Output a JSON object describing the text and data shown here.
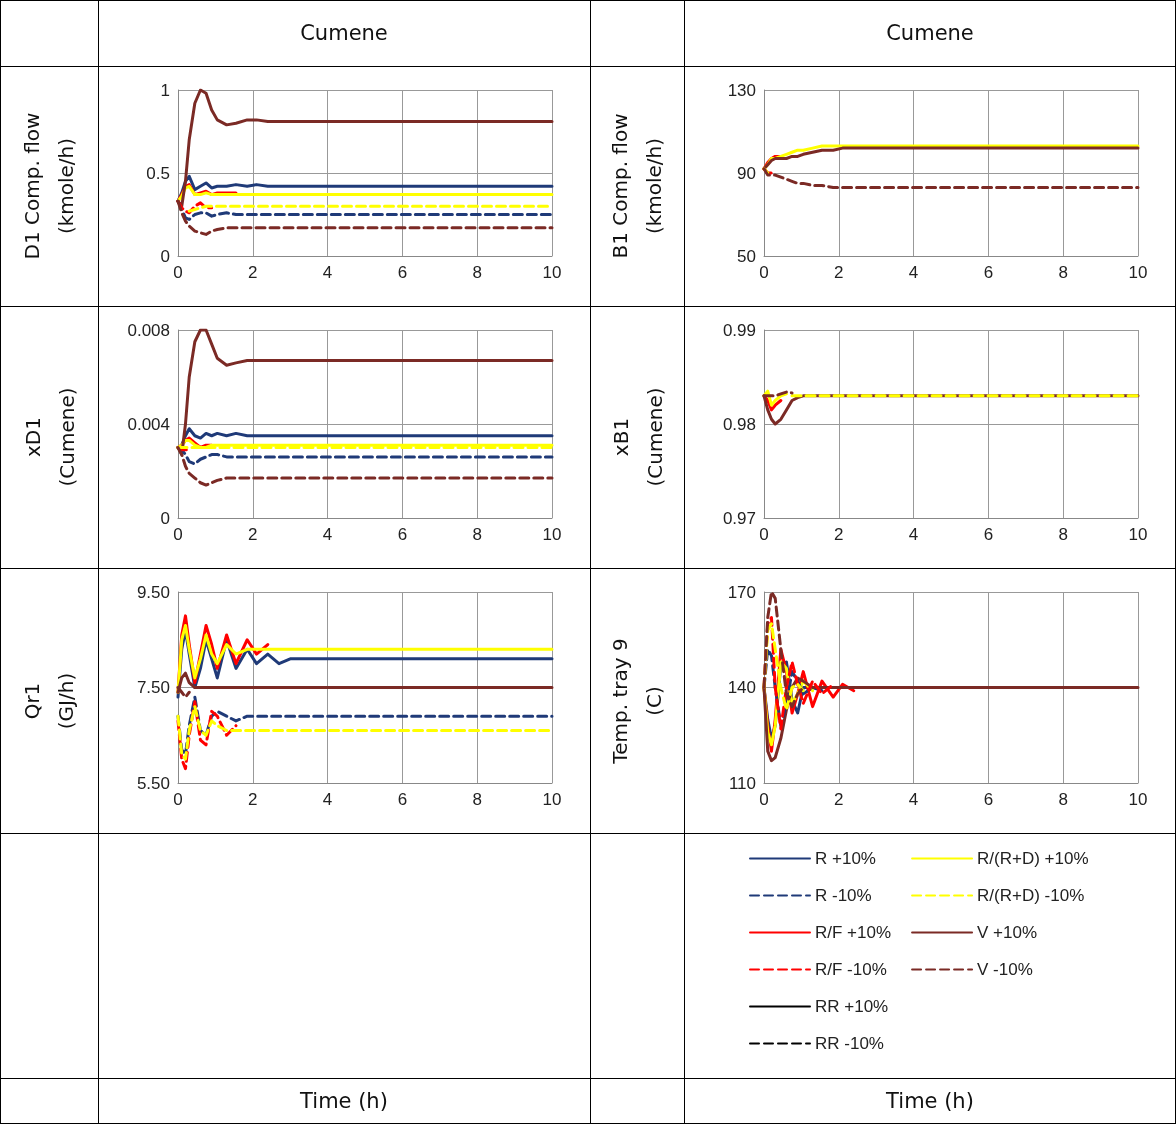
{
  "chart_data": [
    {
      "type": "line",
      "title": "Cumene",
      "ylabel": "D1 Comp. flow (kmole/h)",
      "x": [
        0,
        0.1,
        0.2,
        0.3,
        0.45,
        0.6,
        0.75,
        0.9,
        1.05,
        1.3,
        1.55,
        1.85,
        2.1,
        2.4,
        2.7,
        3,
        4,
        6,
        10
      ],
      "xlim": [
        0,
        10
      ],
      "xticks": [
        0,
        2,
        4,
        6,
        8,
        10
      ],
      "ylim": [
        0,
        1
      ],
      "yticks": [
        0,
        0.5,
        1
      ],
      "grid": true,
      "marker": "none",
      "series": [
        {
          "color": "#1f3a78",
          "line_style": "solid",
          "values": [
            0.33,
            0.38,
            0.45,
            0.48,
            0.4,
            0.42,
            0.44,
            0.41,
            0.42,
            0.42,
            0.43,
            0.42,
            0.43,
            0.42,
            0.42,
            0.42,
            0.42,
            0.42,
            0.42
          ]
        },
        {
          "color": "#1f3a78",
          "line_style": "dashed",
          "values": [
            0.33,
            0.28,
            0.23,
            0.22,
            0.25,
            0.26,
            0.26,
            0.24,
            0.25,
            0.26,
            0.25,
            0.25,
            0.25,
            0.25,
            0.25,
            0.25,
            0.25,
            0.25,
            0.25
          ]
        },
        {
          "color": "#ff0000",
          "line_style": "solid",
          "values": [
            0.33,
            0.37,
            0.42,
            0.43,
            0.37,
            0.38,
            0.39,
            0.37,
            0.38,
            0.38,
            0.38,
            null,
            null,
            null,
            null,
            null,
            null,
            null,
            null
          ]
        },
        {
          "color": "#ff0000",
          "line_style": "dashed",
          "values": [
            0.33,
            0.29,
            0.27,
            0.26,
            0.3,
            0.32,
            0.29,
            0.29,
            null,
            null,
            null,
            null,
            null,
            null,
            null,
            null,
            null,
            null,
            null
          ]
        },
        {
          "color": "#000000",
          "line_style": "solid",
          "values": [
            null,
            null,
            null,
            null,
            null,
            null,
            null,
            null,
            null,
            null,
            null,
            null,
            null,
            null,
            null,
            null,
            null,
            null,
            null
          ]
        },
        {
          "color": "#000000",
          "line_style": "dashed",
          "values": [
            null,
            null,
            null,
            null,
            null,
            null,
            null,
            null,
            null,
            null,
            null,
            null,
            null,
            null,
            null,
            null,
            null,
            null,
            null
          ]
        },
        {
          "color": "#ffff00",
          "line_style": "solid",
          "values": [
            0.33,
            0.36,
            0.41,
            0.42,
            0.37,
            0.37,
            0.38,
            0.37,
            0.37,
            0.37,
            0.37,
            0.37,
            0.37,
            0.37,
            0.37,
            0.37,
            0.37,
            0.37,
            0.37
          ]
        },
        {
          "color": "#ffff00",
          "line_style": "dashed",
          "values": [
            null,
            null,
            null,
            0.27,
            0.28,
            0.29,
            0.3,
            0.3,
            0.3,
            0.3,
            0.3,
            0.3,
            0.3,
            0.3,
            0.3,
            0.3,
            0.3,
            0.3,
            0.3
          ]
        },
        {
          "color": "#7b2a25",
          "line_style": "solid",
          "values": [
            0.33,
            0.3,
            0.45,
            0.7,
            0.92,
            1.0,
            0.98,
            0.88,
            0.82,
            0.79,
            0.8,
            0.82,
            0.82,
            0.81,
            0.81,
            0.81,
            0.81,
            0.81,
            0.81
          ]
        },
        {
          "color": "#7b2a25",
          "line_style": "dashed",
          "values": [
            0.33,
            0.26,
            0.21,
            0.18,
            0.15,
            0.14,
            0.13,
            0.15,
            0.16,
            0.17,
            0.17,
            0.17,
            0.17,
            0.17,
            0.17,
            0.17,
            0.17,
            0.17,
            0.17
          ]
        }
      ]
    },
    {
      "type": "line",
      "title": "Cumene",
      "ylabel": "B1 Comp. flow (kmole/h)",
      "x": [
        0,
        0.1,
        0.2,
        0.3,
        0.45,
        0.6,
        0.75,
        0.9,
        1.05,
        1.3,
        1.55,
        1.85,
        2.1,
        2.4,
        2.7,
        3,
        4,
        6,
        10
      ],
      "xlim": [
        0,
        10
      ],
      "xticks": [
        0,
        2,
        4,
        6,
        8,
        10
      ],
      "ylim": [
        50,
        130
      ],
      "yticks": [
        50,
        90,
        130
      ],
      "grid": true,
      "marker": "none",
      "series": [
        {
          "color": "#1f3a78",
          "line_style": "solid",
          "values": [
            null,
            null,
            null,
            null,
            null,
            null,
            null,
            null,
            null,
            null,
            null,
            null,
            null,
            null,
            null,
            null,
            null,
            null,
            null
          ]
        },
        {
          "color": "#1f3a78",
          "line_style": "dashed",
          "values": [
            null,
            null,
            null,
            null,
            null,
            null,
            null,
            null,
            null,
            null,
            null,
            null,
            null,
            null,
            null,
            null,
            null,
            null,
            null
          ]
        },
        {
          "color": "#ff0000",
          "line_style": "solid",
          "values": [
            92,
            95,
            97,
            98,
            98,
            null,
            null,
            null,
            null,
            null,
            null,
            null,
            null,
            null,
            null,
            null,
            null,
            null,
            null
          ]
        },
        {
          "color": "#ff0000",
          "line_style": "dashed",
          "values": [
            92,
            90,
            90,
            null,
            null,
            null,
            null,
            null,
            null,
            null,
            null,
            null,
            null,
            null,
            null,
            null,
            null,
            null,
            null
          ]
        },
        {
          "color": "#000000",
          "line_style": "solid",
          "values": [
            null,
            null,
            null,
            null,
            null,
            null,
            null,
            null,
            null,
            null,
            null,
            null,
            null,
            null,
            null,
            null,
            null,
            null,
            null
          ]
        },
        {
          "color": "#000000",
          "line_style": "dashed",
          "values": [
            null,
            null,
            null,
            null,
            null,
            null,
            null,
            null,
            null,
            null,
            null,
            null,
            null,
            null,
            null,
            null,
            null,
            null,
            null
          ]
        },
        {
          "color": "#ffff00",
          "line_style": "solid",
          "values": [
            92,
            94,
            97,
            97,
            98,
            99,
            100,
            101,
            101,
            102,
            103,
            103,
            103,
            103,
            103,
            103,
            103,
            103,
            103
          ]
        },
        {
          "color": "#ffff00",
          "line_style": "dashed",
          "values": [
            92,
            90,
            null,
            null,
            null,
            null,
            null,
            null,
            null,
            null,
            null,
            null,
            null,
            null,
            null,
            null,
            null,
            null,
            null
          ]
        },
        {
          "color": "#7b2a25",
          "line_style": "solid",
          "values": [
            92,
            94,
            96,
            97,
            97,
            97,
            98,
            98,
            99,
            100,
            101,
            101,
            102,
            102,
            102,
            102,
            102,
            102,
            102
          ]
        },
        {
          "color": "#7b2a25",
          "line_style": "dashed",
          "values": [
            92,
            89,
            89,
            89,
            88,
            87,
            86,
            85,
            85,
            84,
            84,
            83,
            83,
            83,
            83,
            83,
            83,
            83,
            83
          ]
        }
      ]
    },
    {
      "type": "line",
      "ylabel": "xD1 (Cumene)",
      "x": [
        0,
        0.1,
        0.2,
        0.3,
        0.45,
        0.6,
        0.75,
        0.9,
        1.05,
        1.3,
        1.55,
        1.85,
        2.1,
        2.4,
        2.7,
        3,
        4,
        6,
        10
      ],
      "xlim": [
        0,
        10
      ],
      "xticks": [
        0,
        2,
        4,
        6,
        8,
        10
      ],
      "ylim": [
        0,
        0.008
      ],
      "yticks": [
        0,
        0.004,
        0.008
      ],
      "grid": true,
      "marker": "none",
      "series": [
        {
          "color": "#1f3a78",
          "line_style": "solid",
          "values": [
            0.003,
            0.0031,
            0.0035,
            0.0038,
            0.0035,
            0.0034,
            0.0036,
            0.0035,
            0.0036,
            0.0035,
            0.0036,
            0.0035,
            0.0035,
            0.0035,
            0.0035,
            0.0035,
            0.0035,
            0.0035,
            0.0035
          ]
        },
        {
          "color": "#1f3a78",
          "line_style": "dashed",
          "values": [
            0.003,
            0.0029,
            0.0027,
            0.0024,
            0.0023,
            0.0025,
            0.0026,
            0.0027,
            0.0027,
            0.0026,
            0.0026,
            0.0026,
            0.0026,
            0.0026,
            0.0026,
            0.0026,
            0.0026,
            0.0026,
            0.0026
          ]
        },
        {
          "color": "#ff0000",
          "line_style": "solid",
          "values": [
            0.003,
            0.0031,
            0.0033,
            0.0034,
            0.0032,
            0.003,
            0.0031,
            0.0031,
            null,
            null,
            null,
            null,
            null,
            null,
            null,
            null,
            null,
            null,
            null
          ]
        },
        {
          "color": "#ff0000",
          "line_style": "dashed",
          "values": [
            0.003,
            0.0029,
            0.0029,
            0.0029,
            null,
            null,
            null,
            null,
            null,
            null,
            null,
            null,
            null,
            null,
            null,
            null,
            null,
            null,
            null
          ]
        },
        {
          "color": "#000000",
          "line_style": "solid",
          "values": [
            null,
            null,
            null,
            null,
            null,
            null,
            null,
            null,
            null,
            null,
            null,
            null,
            null,
            null,
            null,
            null,
            null,
            null,
            null
          ]
        },
        {
          "color": "#000000",
          "line_style": "dashed",
          "values": [
            null,
            null,
            null,
            null,
            null,
            null,
            null,
            null,
            null,
            null,
            null,
            null,
            null,
            null,
            null,
            null,
            null,
            null,
            null
          ]
        },
        {
          "color": "#ffff00",
          "line_style": "solid",
          "values": [
            0.003,
            0.0031,
            0.0033,
            0.0033,
            0.0031,
            0.003,
            0.003,
            0.0031,
            0.0031,
            0.0031,
            0.0031,
            0.0031,
            0.0031,
            0.0031,
            0.0031,
            0.0031,
            0.0031,
            0.0031,
            0.0031
          ]
        },
        {
          "color": "#ffff00",
          "line_style": "dashed",
          "values": [
            0.003,
            0.003,
            0.003,
            0.003,
            0.003,
            0.003,
            0.003,
            0.003,
            0.003,
            0.003,
            0.003,
            0.003,
            0.003,
            0.003,
            0.003,
            0.003,
            0.003,
            0.003,
            0.003
          ]
        },
        {
          "color": "#7b2a25",
          "line_style": "solid",
          "values": [
            0.003,
            0.0027,
            0.004,
            0.006,
            0.0075,
            0.008,
            0.008,
            0.0074,
            0.0068,
            0.0065,
            0.0066,
            0.0067,
            0.0067,
            0.0067,
            0.0067,
            0.0067,
            0.0067,
            0.0067,
            0.0067
          ]
        },
        {
          "color": "#7b2a25",
          "line_style": "dashed",
          "values": [
            0.003,
            0.0027,
            0.0022,
            0.0019,
            0.0017,
            0.0015,
            0.0014,
            0.0015,
            0.0016,
            0.0017,
            0.0017,
            0.0017,
            0.0017,
            0.0017,
            0.0017,
            0.0017,
            0.0017,
            0.0017,
            0.0017
          ]
        }
      ]
    },
    {
      "type": "line",
      "ylabel": "xB1 (Cumene)",
      "x": [
        0,
        0.1,
        0.2,
        0.3,
        0.45,
        0.6,
        0.75,
        0.9,
        1.05,
        1.3,
        1.55,
        1.85,
        2.1,
        2.4,
        2.7,
        3,
        4,
        6,
        10
      ],
      "xlim": [
        0,
        10
      ],
      "xticks": [
        0,
        2,
        4,
        6,
        8,
        10
      ],
      "ylim": [
        0.97,
        0.99
      ],
      "yticks": [
        0.97,
        0.98,
        0.99
      ],
      "grid": true,
      "marker": "none",
      "series": [
        {
          "color": "#1f3a78",
          "line_style": "solid",
          "values": [
            null,
            null,
            null,
            null,
            null,
            null,
            null,
            null,
            null,
            null,
            null,
            null,
            null,
            null,
            null,
            null,
            null,
            null,
            null
          ]
        },
        {
          "color": "#1f3a78",
          "line_style": "dashed",
          "values": [
            null,
            null,
            null,
            null,
            null,
            null,
            null,
            null,
            null,
            null,
            null,
            null,
            null,
            null,
            null,
            null,
            null,
            null,
            null
          ]
        },
        {
          "color": "#ff0000",
          "line_style": "solid",
          "values": [
            0.983,
            0.9825,
            0.9815,
            0.982,
            0.9825,
            null,
            null,
            null,
            null,
            null,
            null,
            null,
            null,
            null,
            null,
            null,
            null,
            null,
            null
          ]
        },
        {
          "color": "#ff0000",
          "line_style": "dashed",
          "values": [
            null,
            null,
            null,
            null,
            null,
            null,
            null,
            null,
            null,
            null,
            null,
            null,
            null,
            null,
            null,
            null,
            null,
            null,
            null
          ]
        },
        {
          "color": "#000000",
          "line_style": "solid",
          "values": [
            null,
            null,
            null,
            null,
            null,
            null,
            null,
            null,
            null,
            null,
            null,
            null,
            null,
            null,
            null,
            null,
            null,
            null,
            null
          ]
        },
        {
          "color": "#000000",
          "line_style": "dashed",
          "values": [
            null,
            null,
            null,
            null,
            null,
            null,
            null,
            null,
            null,
            null,
            null,
            null,
            null,
            null,
            null,
            null,
            null,
            null,
            null
          ]
        },
        {
          "color": "#ffff00",
          "line_style": "solid",
          "values": [
            0.983,
            0.9835,
            0.982,
            0.9825,
            0.983,
            0.9832,
            null,
            null,
            null,
            null,
            null,
            null,
            null,
            null,
            null,
            null,
            null,
            null,
            null
          ]
        },
        {
          "color": "#ffff00",
          "line_style": "dashed",
          "values": [
            null,
            null,
            null,
            null,
            null,
            null,
            0.983,
            0.983,
            0.983,
            0.983,
            0.983,
            0.983,
            0.983,
            0.983,
            0.983,
            0.983,
            0.983,
            0.983,
            0.983
          ]
        },
        {
          "color": "#7b2a25",
          "line_style": "solid",
          "values": [
            0.983,
            0.9815,
            0.9805,
            0.98,
            0.9805,
            0.9815,
            0.9825,
            0.9828,
            0.983,
            0.983,
            0.983,
            0.983,
            0.983,
            0.983,
            0.983,
            0.983,
            0.983,
            0.983,
            0.983
          ]
        },
        {
          "color": "#7b2a25",
          "line_style": "dashed",
          "values": [
            0.983,
            0.983,
            0.983,
            0.983,
            0.9832,
            0.9834,
            0.9833,
            null,
            null,
            null,
            null,
            null,
            null,
            null,
            null,
            null,
            null,
            null,
            null
          ]
        }
      ]
    },
    {
      "type": "line",
      "ylabel": "Qr1 (GJ/h)",
      "xlabel": "Time (h)",
      "x": [
        0,
        0.1,
        0.2,
        0.3,
        0.45,
        0.6,
        0.75,
        0.9,
        1.05,
        1.3,
        1.55,
        1.85,
        2.1,
        2.4,
        2.7,
        3,
        4,
        6,
        10
      ],
      "xlim": [
        0,
        10
      ],
      "xticks": [
        0,
        2,
        4,
        6,
        8,
        10
      ],
      "ylim": [
        5.5,
        9.5
      ],
      "yticks": [
        {
          "value": 5.5,
          "label": "5.50"
        },
        {
          "value": 7.5,
          "label": "7.50"
        },
        {
          "value": 9.5,
          "label": "9.50"
        }
      ],
      "grid": true,
      "marker": "none",
      "series": [
        {
          "color": "#1f3a78",
          "line_style": "solid",
          "values": [
            7.3,
            8.3,
            8.7,
            8.2,
            7.5,
            7.9,
            8.5,
            8.1,
            7.7,
            8.5,
            7.9,
            8.3,
            8.0,
            8.2,
            8.0,
            8.1,
            8.1,
            8.1,
            8.1
          ]
        },
        {
          "color": "#1f3a78",
          "line_style": "dashed",
          "values": [
            6.9,
            6.2,
            6.1,
            6.7,
            7.3,
            6.6,
            6.5,
            6.9,
            7.0,
            6.9,
            6.8,
            6.9,
            6.9,
            6.9,
            6.9,
            6.9,
            6.9,
            6.9,
            6.9
          ]
        },
        {
          "color": "#ff0000",
          "line_style": "solid",
          "values": [
            7.4,
            8.6,
            9.0,
            8.4,
            7.6,
            8.2,
            8.8,
            8.4,
            7.9,
            8.6,
            8.0,
            8.5,
            8.2,
            8.4,
            null,
            null,
            null,
            null,
            null
          ]
        },
        {
          "color": "#ff0000",
          "line_style": "dashed",
          "values": [
            6.8,
            6.0,
            5.8,
            6.5,
            7.2,
            6.4,
            6.3,
            7.0,
            6.9,
            6.5,
            6.7,
            null,
            null,
            null,
            null,
            null,
            null,
            null,
            null
          ]
        },
        {
          "color": "#000000",
          "line_style": "solid",
          "values": [
            null,
            null,
            null,
            null,
            null,
            null,
            null,
            null,
            null,
            null,
            null,
            null,
            null,
            null,
            null,
            null,
            null,
            null,
            null
          ]
        },
        {
          "color": "#000000",
          "line_style": "dashed",
          "values": [
            null,
            null,
            null,
            null,
            null,
            null,
            null,
            null,
            null,
            null,
            null,
            null,
            null,
            null,
            null,
            null,
            null,
            null,
            null
          ]
        },
        {
          "color": "#ffff00",
          "line_style": "solid",
          "values": [
            7.4,
            8.5,
            8.8,
            8.3,
            7.7,
            8.1,
            8.6,
            8.2,
            8.0,
            8.4,
            8.2,
            8.3,
            8.3,
            8.3,
            8.3,
            8.3,
            8.3,
            8.3,
            8.3
          ]
        },
        {
          "color": "#ffff00",
          "line_style": "dashed",
          "values": [
            6.9,
            6.1,
            6.0,
            6.6,
            7.1,
            6.6,
            6.5,
            6.8,
            6.7,
            6.6,
            6.6,
            6.6,
            6.6,
            6.6,
            6.6,
            6.6,
            6.6,
            6.6,
            6.6
          ]
        },
        {
          "color": "#7b2a25",
          "line_style": "solid",
          "values": [
            7.4,
            7.7,
            7.8,
            7.6,
            7.5,
            7.5,
            7.5,
            7.5,
            7.5,
            7.5,
            7.5,
            7.5,
            7.5,
            7.5,
            7.5,
            7.5,
            7.5,
            7.5,
            7.5
          ]
        },
        {
          "color": "#7b2a25",
          "line_style": "dashed",
          "values": [
            7.5,
            7.4,
            7.3,
            7.4,
            null,
            null,
            null,
            null,
            null,
            null,
            null,
            null,
            null,
            null,
            null,
            null,
            null,
            null,
            null
          ]
        }
      ]
    },
    {
      "type": "line",
      "ylabel": "Temp. tray 9 (C)",
      "xlabel": "Time (h)",
      "x": [
        0,
        0.1,
        0.2,
        0.3,
        0.45,
        0.6,
        0.75,
        0.9,
        1.05,
        1.3,
        1.55,
        1.85,
        2.1,
        2.4,
        2.7,
        3,
        4,
        6,
        10
      ],
      "xlim": [
        0,
        10
      ],
      "xticks": [
        0,
        2,
        4,
        6,
        8,
        10
      ],
      "ylim": [
        110,
        170
      ],
      "yticks": [
        110,
        140,
        170
      ],
      "grid": true,
      "marker": "none",
      "legend": "bottom",
      "series": [
        {
          "name": "R +10%",
          "color": "#1f3a78",
          "line_style": "solid",
          "values": [
            140,
            130,
            124,
            128,
            147,
            148,
            136,
            132,
            140,
            140,
            139,
            null,
            null,
            null,
            null,
            null,
            null,
            null,
            null
          ]
        },
        {
          "name": "R -10%",
          "color": "#1f3a78",
          "line_style": "dashed",
          "values": [
            140,
            152,
            150,
            140,
            128,
            135,
            145,
            142,
            138,
            140,
            null,
            null,
            null,
            null,
            null,
            null,
            null,
            null,
            null
          ]
        },
        {
          "name": "R/F +10%",
          "color": "#ff0000",
          "line_style": "solid",
          "values": [
            140,
            128,
            120,
            130,
            152,
            145,
            132,
            138,
            145,
            134,
            142,
            137,
            141,
            139,
            null,
            null,
            null,
            null,
            null
          ]
        },
        {
          "name": "R/F -10%",
          "color": "#ff0000",
          "line_style": "dashed",
          "values": [
            140,
            160,
            162,
            140,
            127,
            140,
            148,
            141,
            135,
            142,
            138,
            141,
            null,
            null,
            null,
            null,
            null,
            null,
            null
          ]
        },
        {
          "name": "RR +10%",
          "color": "#000000",
          "line_style": "solid",
          "values": [
            null,
            null,
            null,
            null,
            null,
            null,
            null,
            null,
            null,
            null,
            null,
            null,
            null,
            null,
            null,
            null,
            null,
            null,
            null
          ]
        },
        {
          "name": "RR -10%",
          "color": "#000000",
          "line_style": "dashed",
          "values": [
            null,
            null,
            null,
            null,
            null,
            null,
            null,
            null,
            null,
            null,
            null,
            null,
            null,
            null,
            null,
            null,
            null,
            null,
            null
          ]
        },
        {
          "name": "R/(R+D) +10%",
          "color": "#ffff00",
          "line_style": "solid",
          "values": [
            140,
            126,
            122,
            128,
            148,
            146,
            135,
            138,
            142,
            139,
            null,
            null,
            null,
            null,
            null,
            null,
            null,
            null,
            null
          ]
        },
        {
          "name": "R/(R+D) -10%",
          "color": "#ffff00",
          "line_style": "dashed",
          "values": [
            140,
            158,
            160,
            152,
            140,
            133,
            140,
            141,
            139,
            null,
            null,
            null,
            null,
            null,
            null,
            null,
            null,
            null,
            null
          ]
        },
        {
          "name": "V +10%",
          "color": "#7b2a25",
          "line_style": "solid",
          "values": [
            140,
            120,
            117,
            118,
            124,
            133,
            140,
            143,
            142,
            140,
            140,
            140,
            140,
            140,
            140,
            140,
            140,
            140,
            140
          ]
        },
        {
          "name": "V -10%",
          "color": "#7b2a25",
          "line_style": "dashed",
          "values": [
            140,
            162,
            170,
            168,
            152,
            138,
            134,
            138,
            140,
            null,
            null,
            null,
            null,
            null,
            null,
            null,
            null,
            null,
            null
          ]
        }
      ]
    }
  ]
}
